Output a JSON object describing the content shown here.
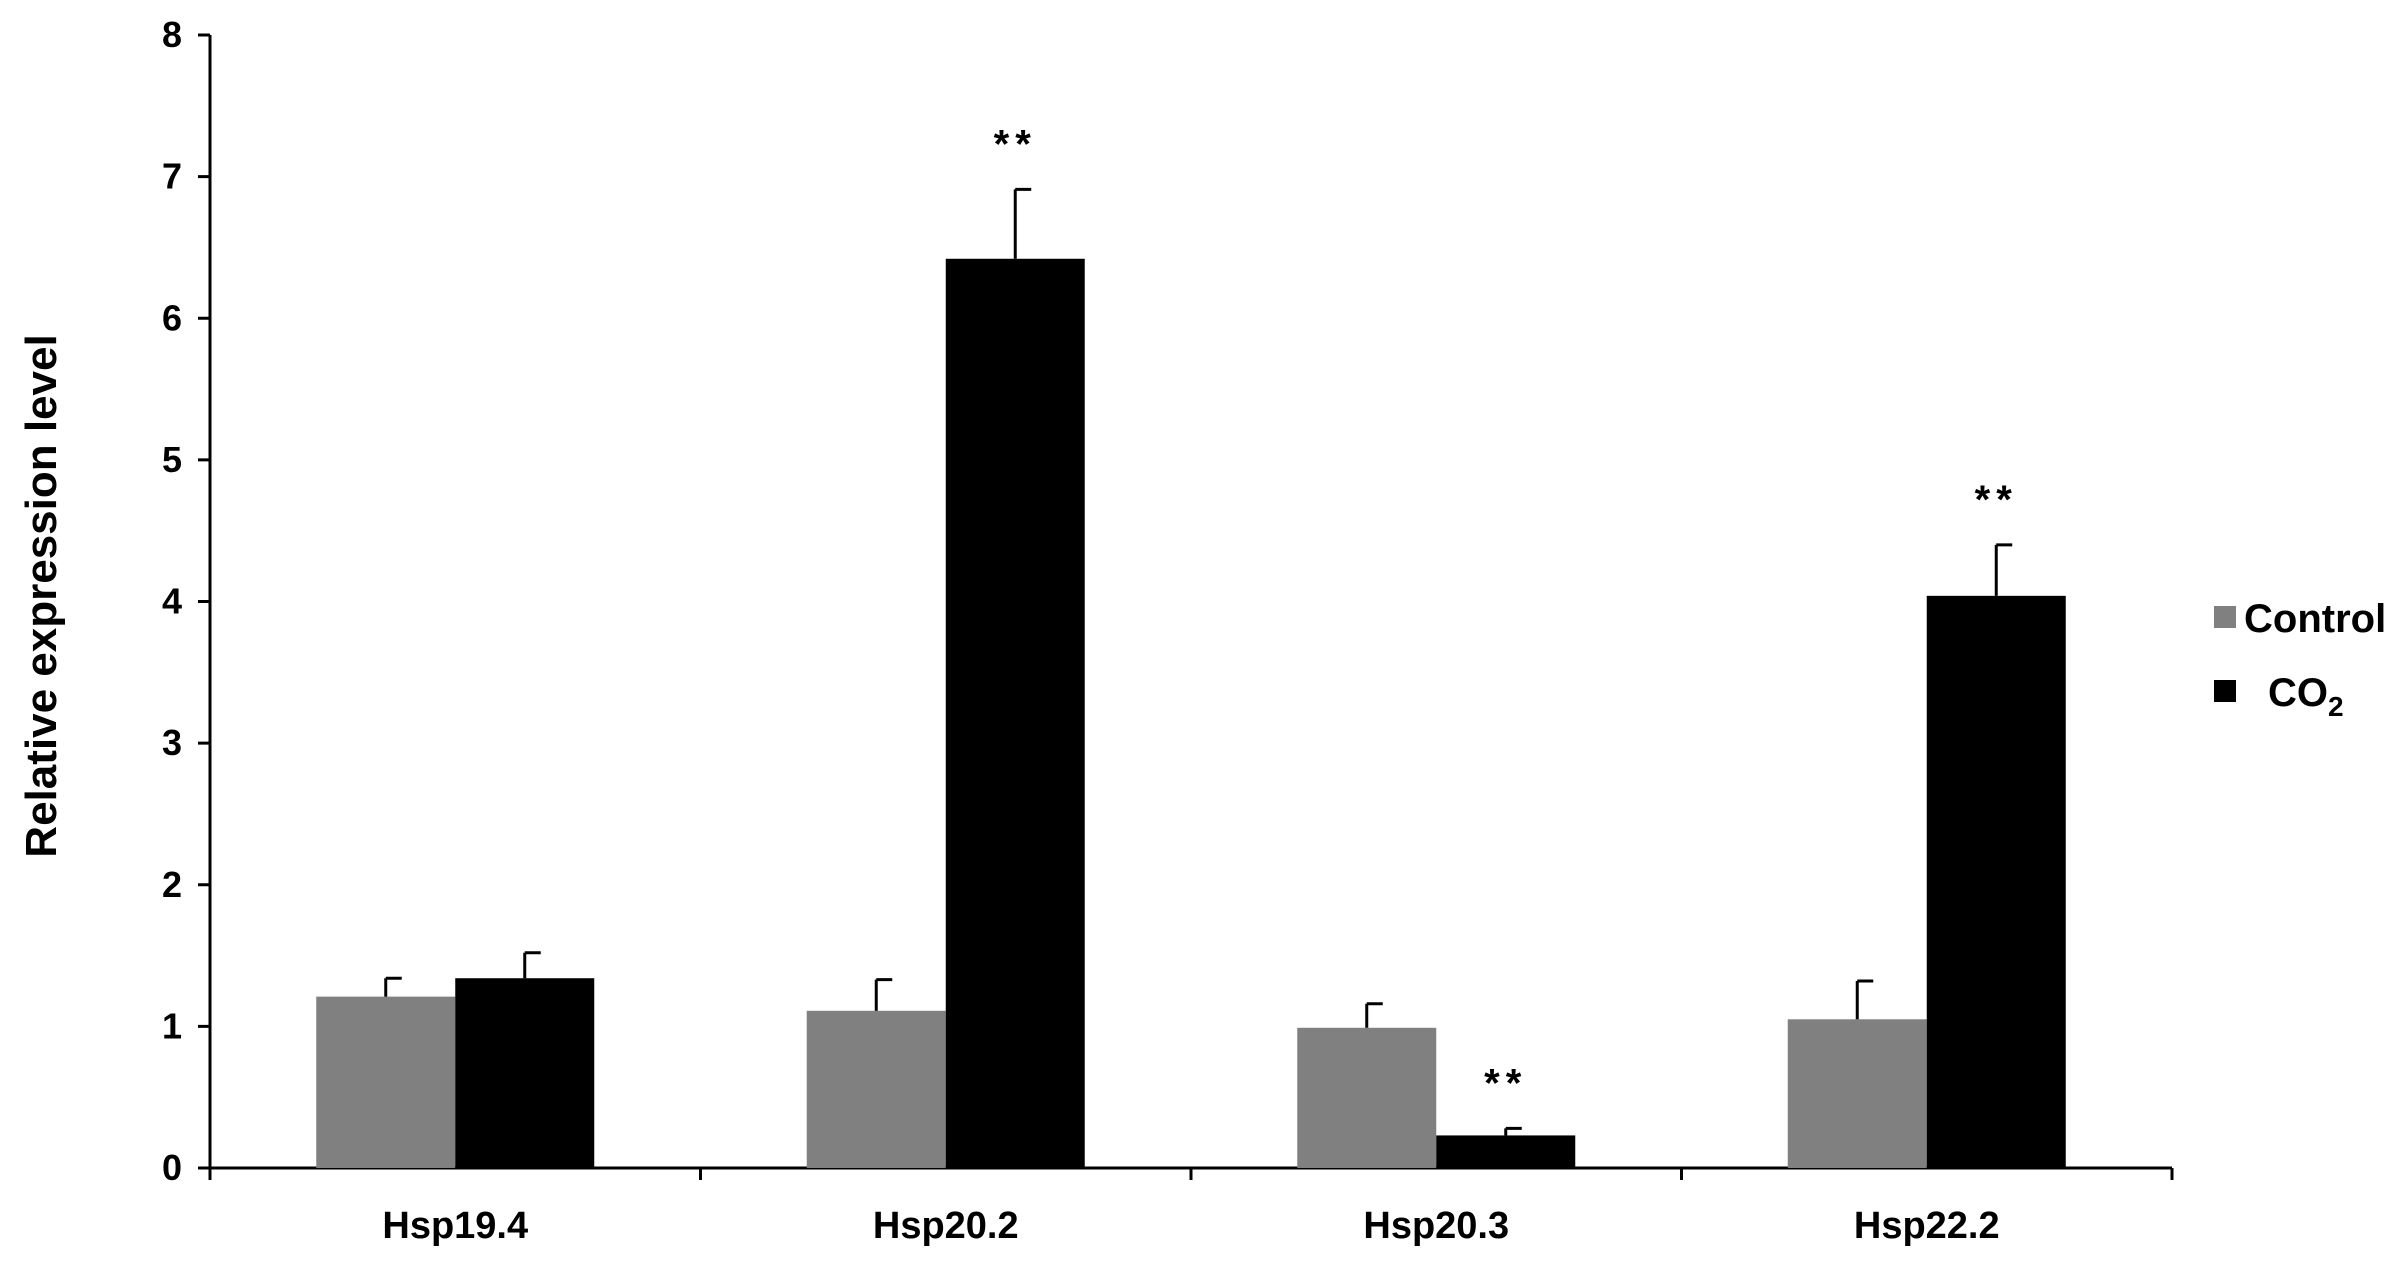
{
  "chart_data": {
    "type": "bar",
    "title": "",
    "xlabel": "",
    "ylabel": "Relative expression level",
    "ylim": [
      0,
      8
    ],
    "yticks": [
      "0",
      "1",
      "2",
      "3",
      "4",
      "5",
      "6",
      "7",
      "8"
    ],
    "categories": [
      "Hsp19.4",
      "Hsp20.2",
      "Hsp20.3",
      "Hsp22.2"
    ],
    "grid": false,
    "legend_position": "right",
    "series": [
      {
        "name": "Control",
        "name_sub": "",
        "color": "#808080",
        "values": [
          1.21,
          1.11,
          0.99,
          1.05
        ],
        "errors": [
          0.13,
          0.22,
          0.17,
          0.27
        ],
        "significance": [
          "",
          "",
          "",
          ""
        ]
      },
      {
        "name": "CO",
        "name_sub": "2",
        "color": "#000000",
        "values": [
          1.34,
          6.42,
          0.23,
          4.04
        ],
        "errors": [
          0.18,
          0.49,
          0.05,
          0.36
        ],
        "significance": [
          "",
          "**",
          "**",
          "**"
        ]
      }
    ]
  }
}
